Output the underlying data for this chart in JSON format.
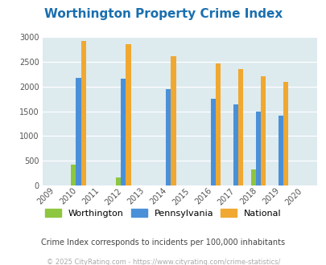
{
  "title": "Worthington Property Crime Index",
  "all_years": [
    2009,
    2010,
    2011,
    2012,
    2013,
    2014,
    2015,
    2016,
    2017,
    2018,
    2019,
    2020
  ],
  "worthington": {
    "2010": 430,
    "2012": 155,
    "2018": 320
  },
  "pennsylvania": {
    "2010": 2170,
    "2012": 2160,
    "2014": 1950,
    "2016": 1750,
    "2017": 1640,
    "2018": 1490,
    "2019": 1410
  },
  "national": {
    "2010": 2930,
    "2012": 2850,
    "2014": 2610,
    "2016": 2470,
    "2017": 2360,
    "2018": 2200,
    "2019": 2100
  },
  "worthington_color": "#8dc63f",
  "pennsylvania_color": "#4a90d9",
  "national_color": "#f0a830",
  "bg_color": "#ddeaee",
  "ylim": [
    0,
    3000
  ],
  "yticks": [
    0,
    500,
    1000,
    1500,
    2000,
    2500,
    3000
  ],
  "subtitle": "Crime Index corresponds to incidents per 100,000 inhabitants",
  "footer": "© 2025 CityRating.com - https://www.cityrating.com/crime-statistics/",
  "title_color": "#1a6faf",
  "subtitle_color": "#444444",
  "footer_color": "#aaaaaa",
  "bar_width": 0.22
}
